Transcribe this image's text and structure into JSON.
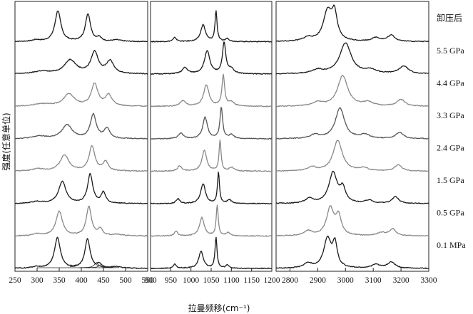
{
  "chart_data": {
    "type": "line",
    "xlabel": "拉曼频移(cm⁻¹)",
    "ylabel": "强度(任意单位)",
    "panels": [
      {
        "xlim": [
          250,
          550
        ],
        "ticks": [
          250,
          300,
          350,
          400,
          450,
          500,
          550
        ]
      },
      {
        "xlim": [
          900,
          1200
        ],
        "ticks": [
          900,
          950,
          1000,
          1050,
          1100,
          1150,
          1200
        ]
      },
      {
        "xlim": [
          2750,
          3300
        ],
        "ticks": [
          2800,
          2900,
          3000,
          3100,
          3200,
          3300
        ]
      }
    ],
    "series": [
      {
        "label": "卸压后",
        "color": "#1a1a1a",
        "peaks": [
          [
            [
              298,
              0.05,
              10
            ],
            [
              347,
              1,
              8
            ],
            [
              415,
              0.9,
              7
            ],
            [
              440,
              0.12,
              6
            ],
            [
              480,
              0.05,
              12
            ]
          ],
          [
            [
              960,
              0.13,
              5
            ],
            [
              1030,
              0.55,
              7
            ],
            [
              1062,
              1,
              3
            ],
            [
              1090,
              0.1,
              5
            ]
          ],
          [
            [
              2865,
              0.12,
              20
            ],
            [
              2935,
              0.95,
              18
            ],
            [
              2960,
              0.85,
              12
            ],
            [
              3110,
              0.12,
              18
            ],
            [
              3165,
              0.2,
              16
            ]
          ]
        ]
      },
      {
        "label": "5.5 GPa",
        "color": "#1a1a1a",
        "peaks": [
          [
            [
              310,
              0.08,
              20
            ],
            [
              375,
              0.45,
              16
            ],
            [
              430,
              0.7,
              10
            ],
            [
              465,
              0.4,
              10
            ]
          ],
          [
            [
              985,
              0.2,
              8
            ],
            [
              1040,
              0.75,
              8
            ],
            [
              1082,
              1,
              5
            ],
            [
              1100,
              0.15,
              8
            ]
          ],
          [
            [
              2900,
              0.12,
              25
            ],
            [
              3000,
              1,
              25
            ],
            [
              3090,
              0.12,
              25
            ],
            [
              3210,
              0.25,
              20
            ]
          ]
        ]
      },
      {
        "label": "4.4 GPa",
        "color": "#888888",
        "peaks": [
          [
            [
              310,
              0.08,
              20
            ],
            [
              372,
              0.4,
              15
            ],
            [
              430,
              0.72,
              9
            ],
            [
              462,
              0.35,
              9
            ]
          ],
          [
            [
              980,
              0.18,
              8
            ],
            [
              1038,
              0.7,
              8
            ],
            [
              1080,
              1,
              4
            ],
            [
              1100,
              0.14,
              8
            ]
          ],
          [
            [
              2900,
              0.12,
              22
            ],
            [
              2990,
              1,
              22
            ],
            [
              3080,
              0.12,
              22
            ],
            [
              3200,
              0.22,
              18
            ]
          ]
        ]
      },
      {
        "label": "3.3 GPa",
        "color": "#555555",
        "peaks": [
          [
            [
              305,
              0.08,
              18
            ],
            [
              368,
              0.45,
              14
            ],
            [
              427,
              0.78,
              8
            ],
            [
              458,
              0.32,
              8
            ]
          ],
          [
            [
              975,
              0.18,
              7
            ],
            [
              1035,
              0.7,
              7
            ],
            [
              1075,
              1,
              4
            ],
            [
              1100,
              0.13,
              7
            ]
          ],
          [
            [
              2890,
              0.12,
              20
            ],
            [
              2980,
              1,
              20
            ],
            [
              3070,
              0.12,
              20
            ],
            [
              3195,
              0.2,
              16
            ]
          ]
        ]
      },
      {
        "label": "2.4 GPa",
        "color": "#888888",
        "peaks": [
          [
            [
              302,
              0.07,
              16
            ],
            [
              362,
              0.52,
              12
            ],
            [
              424,
              0.8,
              8
            ],
            [
              455,
              0.3,
              7
            ]
          ],
          [
            [
              972,
              0.17,
              6
            ],
            [
              1033,
              0.68,
              7
            ],
            [
              1072,
              1,
              3
            ],
            [
              1100,
              0.12,
              7
            ]
          ],
          [
            [
              2880,
              0.12,
              18
            ],
            [
              2972,
              1,
              20
            ],
            [
              3065,
              0.1,
              18
            ],
            [
              3190,
              0.2,
              16
            ]
          ]
        ]
      },
      {
        "label": "1.5 GPa",
        "color": "#1a1a1a",
        "peaks": [
          [
            [
              300,
              0.06,
              14
            ],
            [
              357,
              0.72,
              10
            ],
            [
              420,
              0.95,
              7
            ],
            [
              450,
              0.35,
              6
            ]
          ],
          [
            [
              968,
              0.16,
              5
            ],
            [
              1030,
              0.65,
              7
            ],
            [
              1068,
              1,
              3
            ],
            [
              1095,
              0.12,
              6
            ]
          ],
          [
            [
              2870,
              0.15,
              18
            ],
            [
              2955,
              1,
              18
            ],
            [
              2990,
              0.45,
              12
            ],
            [
              3085,
              0.1,
              16
            ],
            [
              3180,
              0.22,
              14
            ]
          ]
        ]
      },
      {
        "label": "0.5 GPa",
        "color": "#888888",
        "peaks": [
          [
            [
              300,
              0.06,
              12
            ],
            [
              350,
              0.8,
              9
            ],
            [
              417,
              0.95,
              7
            ],
            [
              443,
              0.22,
              6
            ],
            [
              480,
              0.05,
              12
            ]
          ],
          [
            [
              963,
              0.15,
              5
            ],
            [
              1027,
              0.6,
              7
            ],
            [
              1065,
              1,
              3
            ],
            [
              1092,
              0.1,
              6
            ]
          ],
          [
            [
              2865,
              0.15,
              18
            ],
            [
              2945,
              0.9,
              16
            ],
            [
              2975,
              0.6,
              12
            ],
            [
              3130,
              0.1,
              18
            ],
            [
              3170,
              0.22,
              14
            ]
          ]
        ]
      },
      {
        "label": "0.1 MPa",
        "color": "#1a1a1a",
        "peaks": [
          [
            [
              298,
              0.05,
              10
            ],
            [
              346,
              1,
              8
            ],
            [
              414,
              0.95,
              7
            ],
            [
              440,
              0.12,
              6
            ],
            [
              480,
              0.05,
              12
            ]
          ],
          [
            [
              960,
              0.13,
              5
            ],
            [
              1025,
              0.55,
              7
            ],
            [
              1062,
              1,
              3
            ],
            [
              1090,
              0.1,
              5
            ]
          ],
          [
            [
              2865,
              0.15,
              18
            ],
            [
              2935,
              0.95,
              16
            ],
            [
              2962,
              0.75,
              10
            ],
            [
              3110,
              0.12,
              18
            ],
            [
              3165,
              0.2,
              16
            ]
          ]
        ]
      }
    ]
  }
}
